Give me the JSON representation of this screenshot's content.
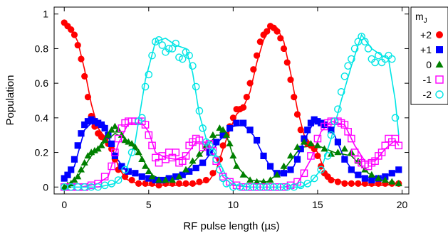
{
  "chart_data": {
    "type": "scatter",
    "xlabel": "RF pulse length (µs)",
    "ylabel": "Population",
    "xlim": [
      -0.6,
      20.4
    ],
    "ylim": [
      -0.04,
      1.04
    ],
    "x_ticks": [
      0,
      5,
      10,
      15,
      20
    ],
    "y_ticks": [
      0,
      0.2,
      0.4,
      0.6,
      0.8,
      1
    ],
    "x_tick_labels": [
      "0",
      "5",
      "10",
      "15",
      "20"
    ],
    "y_tick_labels": [
      "0",
      "0.2",
      "0.4",
      "0.6",
      "0.8",
      "1"
    ],
    "legend": {
      "title_main": "m",
      "title_sub": "J",
      "placement": "right"
    },
    "series": [
      {
        "name": "+2",
        "color": "#ff0000",
        "marker": "filled-circle",
        "x": [
          0,
          0.2,
          0.4,
          0.6,
          0.8,
          1.0,
          1.2,
          1.4,
          1.6,
          1.8,
          2.0,
          2.2,
          2.4,
          2.6,
          2.8,
          3.0,
          3.2,
          3.6,
          4.0,
          4.4,
          4.8,
          5.2,
          5.6,
          6.0,
          6.4,
          6.8,
          7.2,
          7.6,
          8.0,
          8.4,
          8.8,
          9.2,
          9.4,
          9.6,
          9.8,
          10.0,
          10.2,
          10.4,
          10.6,
          10.8,
          11.0,
          11.2,
          11.4,
          11.6,
          11.8,
          12.0,
          12.2,
          12.4,
          12.6,
          12.8,
          13.0,
          13.2,
          13.4,
          13.6,
          13.8,
          14.0,
          14.2,
          14.4,
          14.6,
          14.8,
          15.0,
          15.2,
          15.4,
          15.6,
          15.8,
          16.2,
          16.6,
          17.0,
          17.4,
          17.8,
          18.2,
          18.6,
          19.0,
          19.4,
          19.8
        ],
        "y": [
          0.95,
          0.93,
          0.91,
          0.88,
          0.82,
          0.74,
          0.64,
          0.52,
          0.41,
          0.35,
          0.31,
          0.29,
          0.28,
          0.25,
          0.22,
          0.16,
          0.1,
          0.06,
          0.04,
          0.02,
          0.02,
          0.02,
          0.01,
          0.02,
          0.02,
          0.02,
          0.02,
          0.02,
          0.03,
          0.04,
          0.08,
          0.16,
          0.24,
          0.3,
          0.35,
          0.4,
          0.45,
          0.45,
          0.46,
          0.52,
          0.6,
          0.68,
          0.76,
          0.84,
          0.88,
          0.9,
          0.93,
          0.92,
          0.9,
          0.86,
          0.8,
          0.72,
          0.62,
          0.52,
          0.42,
          0.33,
          0.27,
          0.25,
          0.24,
          0.22,
          0.18,
          0.12,
          0.08,
          0.06,
          0.04,
          0.03,
          0.02,
          0.02,
          0.02,
          0.02,
          0.02,
          0.02,
          0.02,
          0.02,
          0.02
        ],
        "fit_x": [
          0,
          0.4,
          0.8,
          1.2,
          1.6,
          2.0,
          2.4,
          2.8,
          3.2,
          3.6,
          4.0,
          5.0,
          6.0,
          7.0,
          8.0,
          8.6,
          9.0,
          9.4,
          9.8,
          10.2,
          10.6,
          11.0,
          11.4,
          11.8,
          12.2,
          12.6,
          13.0,
          13.4,
          13.8,
          14.2,
          14.6,
          15.0,
          15.4,
          15.8,
          16.4,
          17.0,
          18.0,
          19.0,
          19.8
        ],
        "fit_y": [
          0.96,
          0.92,
          0.84,
          0.68,
          0.48,
          0.34,
          0.29,
          0.24,
          0.12,
          0.05,
          0.03,
          0.01,
          0.01,
          0.01,
          0.02,
          0.04,
          0.1,
          0.22,
          0.33,
          0.42,
          0.46,
          0.55,
          0.72,
          0.85,
          0.92,
          0.92,
          0.84,
          0.66,
          0.45,
          0.3,
          0.25,
          0.2,
          0.1,
          0.05,
          0.03,
          0.02,
          0.01,
          0.01,
          0.02
        ]
      },
      {
        "name": "+1",
        "color": "#0000ff",
        "marker": "filled-square",
        "x": [
          0,
          0.2,
          0.4,
          0.6,
          0.8,
          1.0,
          1.2,
          1.4,
          1.6,
          1.8,
          2.0,
          2.2,
          2.4,
          2.6,
          2.8,
          3.0,
          3.4,
          3.8,
          4.2,
          4.6,
          5.0,
          5.4,
          5.8,
          6.2,
          6.6,
          7.0,
          7.4,
          7.8,
          8.2,
          8.6,
          9.0,
          9.4,
          9.8,
          10.2,
          10.6,
          11.0,
          11.4,
          11.8,
          12.2,
          12.6,
          13.0,
          13.4,
          13.8,
          14.0,
          14.2,
          14.4,
          14.6,
          14.8,
          15.0,
          15.2,
          15.4,
          15.8,
          16.2,
          16.6,
          17.0,
          17.4,
          17.8,
          18.2,
          18.6,
          19.0,
          19.4,
          19.8
        ],
        "y": [
          0.05,
          0.07,
          0.1,
          0.16,
          0.24,
          0.31,
          0.36,
          0.38,
          0.39,
          0.38,
          0.37,
          0.36,
          0.34,
          0.3,
          0.25,
          0.18,
          0.12,
          0.09,
          0.08,
          0.06,
          0.05,
          0.04,
          0.04,
          0.05,
          0.06,
          0.07,
          0.09,
          0.11,
          0.14,
          0.2,
          0.26,
          0.3,
          0.34,
          0.37,
          0.37,
          0.33,
          0.27,
          0.18,
          0.12,
          0.08,
          0.08,
          0.1,
          0.16,
          0.22,
          0.28,
          0.33,
          0.37,
          0.39,
          0.38,
          0.37,
          0.36,
          0.33,
          0.26,
          0.16,
          0.1,
          0.07,
          0.05,
          0.04,
          0.05,
          0.06,
          0.08,
          0.1
        ],
        "fit_x": [
          0,
          0.6,
          1.2,
          1.8,
          2.4,
          3.0,
          3.6,
          4.4,
          5.4,
          6.4,
          7.4,
          8.4,
          9.2,
          10.0,
          10.6,
          11.2,
          11.8,
          12.4,
          13.0,
          13.6,
          14.2,
          14.8,
          15.4,
          16.0,
          16.6,
          17.2,
          18.0,
          19.0,
          19.8
        ],
        "fit_y": [
          0.04,
          0.12,
          0.33,
          0.39,
          0.36,
          0.18,
          0.1,
          0.07,
          0.04,
          0.04,
          0.08,
          0.16,
          0.27,
          0.35,
          0.36,
          0.3,
          0.18,
          0.09,
          0.07,
          0.12,
          0.27,
          0.38,
          0.37,
          0.3,
          0.16,
          0.08,
          0.04,
          0.06,
          0.1
        ]
      },
      {
        "name": "0",
        "color": "#008000",
        "marker": "filled-triangle",
        "x": [
          0,
          0.2,
          0.4,
          0.6,
          0.8,
          1.0,
          1.2,
          1.4,
          1.6,
          1.8,
          2.0,
          2.2,
          2.4,
          2.6,
          2.8,
          3.0,
          3.2,
          3.4,
          3.6,
          3.8,
          4.0,
          4.2,
          4.4,
          4.6,
          4.8,
          5.0,
          5.2,
          5.6,
          6.0,
          6.4,
          6.8,
          7.2,
          7.6,
          8.0,
          8.4,
          8.8,
          9.2,
          9.4,
          9.6,
          9.8,
          10.0,
          10.2,
          10.6,
          11.0,
          11.4,
          11.8,
          12.2,
          12.6,
          13.0,
          13.4,
          13.8,
          14.2,
          14.6,
          15.0,
          15.4,
          15.8,
          16.2,
          16.6,
          17.0,
          17.4,
          17.8,
          18.2,
          18.6,
          19.0,
          19.4,
          19.8
        ],
        "y": [
          0.0,
          0.01,
          0.02,
          0.04,
          0.06,
          0.1,
          0.14,
          0.18,
          0.2,
          0.21,
          0.22,
          0.24,
          0.27,
          0.3,
          0.33,
          0.35,
          0.33,
          0.3,
          0.27,
          0.26,
          0.25,
          0.23,
          0.2,
          0.16,
          0.12,
          0.09,
          0.06,
          0.04,
          0.04,
          0.04,
          0.06,
          0.1,
          0.15,
          0.19,
          0.24,
          0.3,
          0.34,
          0.33,
          0.3,
          0.25,
          0.18,
          0.12,
          0.07,
          0.04,
          0.03,
          0.03,
          0.04,
          0.07,
          0.12,
          0.18,
          0.23,
          0.26,
          0.25,
          0.24,
          0.22,
          0.19,
          0.2,
          0.22,
          0.2,
          0.15,
          0.1,
          0.07,
          0.05,
          0.04,
          0.03,
          0.02
        ],
        "fit_x": [
          0,
          0.8,
          1.6,
          2.4,
          3.0,
          3.6,
          4.4,
          5.2,
          6.0,
          7.0,
          8.0,
          9.0,
          9.6,
          10.2,
          11.0,
          12.0,
          13.0,
          14.0,
          15.0,
          16.0,
          17.0,
          18.0,
          19.0,
          19.8
        ],
        "fit_y": [
          0.0,
          0.06,
          0.18,
          0.26,
          0.31,
          0.28,
          0.2,
          0.07,
          0.03,
          0.07,
          0.18,
          0.3,
          0.3,
          0.12,
          0.04,
          0.03,
          0.1,
          0.23,
          0.24,
          0.2,
          0.18,
          0.08,
          0.03,
          0.02
        ]
      },
      {
        "name": "-1",
        "color": "#ff00ff",
        "marker": "open-square",
        "x": [
          0,
          0.4,
          0.8,
          1.2,
          1.6,
          2.0,
          2.4,
          2.8,
          3.0,
          3.2,
          3.4,
          3.6,
          3.8,
          4.0,
          4.2,
          4.4,
          4.6,
          4.8,
          5.0,
          5.2,
          5.4,
          5.6,
          5.8,
          6.0,
          6.2,
          6.4,
          6.6,
          6.8,
          7.0,
          7.2,
          7.4,
          7.6,
          7.8,
          8.0,
          8.2,
          8.4,
          8.6,
          8.8,
          9.0,
          9.4,
          9.8,
          10.2,
          10.6,
          11.0,
          11.4,
          11.8,
          12.2,
          12.6,
          13.0,
          13.4,
          13.8,
          14.2,
          14.6,
          15.0,
          15.4,
          15.6,
          15.8,
          16.0,
          16.2,
          16.4,
          16.6,
          16.8,
          17.0,
          17.2,
          17.4,
          17.6,
          17.8,
          18.0,
          18.2,
          18.4,
          18.6,
          18.8,
          19.0,
          19.2,
          19.4,
          19.6,
          19.8
        ],
        "y": [
          0.0,
          0.0,
          0.0,
          0.0,
          0.01,
          0.02,
          0.06,
          0.12,
          0.2,
          0.28,
          0.34,
          0.37,
          0.38,
          0.38,
          0.38,
          0.38,
          0.38,
          0.36,
          0.3,
          0.24,
          0.17,
          0.14,
          0.18,
          0.16,
          0.2,
          0.17,
          0.2,
          0.14,
          0.15,
          0.18,
          0.24,
          0.26,
          0.28,
          0.27,
          0.23,
          0.24,
          0.25,
          0.21,
          0.15,
          0.06,
          0.03,
          0.01,
          0.0,
          0.0,
          0.0,
          0.0,
          0.0,
          0.0,
          0.0,
          0.01,
          0.03,
          0.08,
          0.18,
          0.28,
          0.35,
          0.37,
          0.38,
          0.38,
          0.38,
          0.37,
          0.36,
          0.32,
          0.28,
          0.2,
          0.16,
          0.14,
          0.13,
          0.12,
          0.14,
          0.15,
          0.18,
          0.2,
          0.24,
          0.28,
          0.26,
          0.28,
          0.24
        ],
        "fit_x": [
          0,
          1.0,
          2.0,
          2.6,
          3.2,
          3.8,
          4.6,
          5.0,
          5.4,
          6.0,
          6.6,
          7.2,
          7.8,
          8.4,
          9.0,
          9.4,
          10.0,
          11.0,
          12.0,
          13.0,
          13.8,
          14.6,
          15.2,
          15.8,
          16.6,
          17.2,
          17.8,
          18.4,
          19.0,
          19.6,
          19.8
        ],
        "fit_y": [
          0.0,
          0.0,
          0.02,
          0.06,
          0.25,
          0.37,
          0.37,
          0.32,
          0.2,
          0.17,
          0.16,
          0.18,
          0.26,
          0.26,
          0.16,
          0.06,
          0.01,
          0.0,
          0.0,
          0.0,
          0.02,
          0.16,
          0.32,
          0.38,
          0.36,
          0.24,
          0.15,
          0.15,
          0.22,
          0.27,
          0.24
        ]
      },
      {
        "name": "-2",
        "color": "#00e5e5",
        "marker": "open-circle",
        "x": [
          0,
          0.4,
          0.8,
          1.2,
          1.6,
          2.0,
          2.4,
          2.8,
          3.2,
          3.6,
          4.0,
          4.4,
          4.6,
          4.8,
          5.0,
          5.2,
          5.4,
          5.6,
          5.8,
          6.0,
          6.2,
          6.4,
          6.6,
          6.8,
          7.0,
          7.2,
          7.4,
          7.6,
          7.8,
          8.0,
          8.2,
          8.4,
          8.6,
          8.8,
          9.0,
          9.2,
          9.4,
          9.6,
          10.0,
          10.4,
          10.8,
          11.2,
          11.6,
          12.0,
          12.4,
          12.8,
          13.2,
          13.6,
          14.0,
          14.4,
          14.8,
          15.2,
          15.6,
          15.8,
          16.0,
          16.2,
          16.4,
          16.6,
          16.8,
          17.0,
          17.2,
          17.4,
          17.6,
          17.8,
          18.0,
          18.2,
          18.4,
          18.6,
          18.8,
          19.0,
          19.2,
          19.4,
          19.6
        ],
        "y": [
          0.0,
          0.0,
          0.0,
          0.0,
          0.0,
          0.0,
          0.01,
          0.02,
          0.04,
          0.1,
          0.2,
          0.38,
          0.4,
          0.58,
          0.65,
          0.76,
          0.84,
          0.85,
          0.82,
          0.78,
          0.8,
          0.8,
          0.83,
          0.75,
          0.74,
          0.78,
          0.76,
          0.7,
          0.58,
          0.44,
          0.34,
          0.26,
          0.24,
          0.2,
          0.16,
          0.1,
          0.05,
          0.02,
          0.0,
          0.0,
          0.0,
          0.0,
          0.0,
          0.0,
          0.0,
          0.0,
          0.0,
          0.0,
          0.01,
          0.02,
          0.05,
          0.1,
          0.18,
          0.3,
          0.38,
          0.45,
          0.55,
          0.64,
          0.7,
          0.74,
          0.8,
          0.84,
          0.87,
          0.84,
          0.8,
          0.74,
          0.72,
          0.76,
          0.72,
          0.74,
          0.76,
          0.74,
          0.4
        ],
        "fit_x": [
          0,
          1.0,
          2.0,
          3.0,
          3.6,
          4.2,
          4.8,
          5.4,
          6.0,
          6.6,
          7.2,
          7.6,
          8.0,
          8.4,
          9.0,
          9.6,
          10.2,
          11.0,
          12.0,
          13.0,
          14.0,
          14.6,
          15.2,
          15.8,
          16.4,
          17.0,
          17.6,
          18.2,
          18.8,
          19.2,
          19.6,
          19.8
        ],
        "fit_y": [
          0.0,
          0.0,
          0.0,
          0.02,
          0.08,
          0.26,
          0.62,
          0.84,
          0.86,
          0.82,
          0.8,
          0.66,
          0.42,
          0.28,
          0.18,
          0.06,
          0.01,
          0.0,
          0.0,
          0.0,
          0.0,
          0.03,
          0.1,
          0.28,
          0.5,
          0.7,
          0.88,
          0.8,
          0.76,
          0.74,
          0.5,
          0.3
        ]
      }
    ]
  }
}
